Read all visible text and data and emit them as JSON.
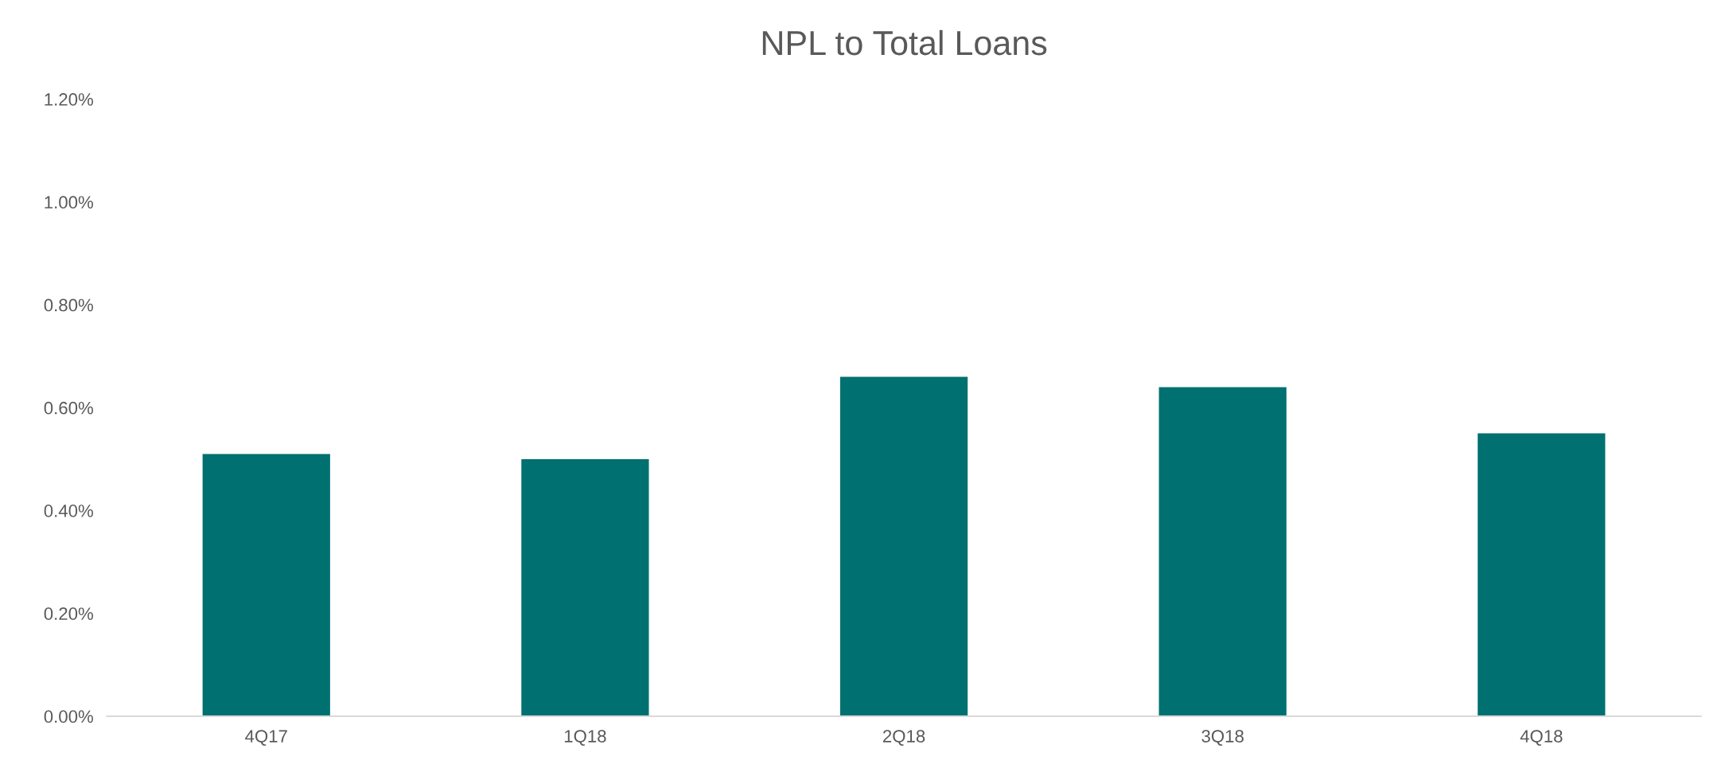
{
  "chart_data": {
    "type": "bar",
    "title": "NPL to Total Loans",
    "categories": [
      "4Q17",
      "1Q18",
      "2Q18",
      "3Q18",
      "4Q18"
    ],
    "values": [
      0.51,
      0.5,
      0.66,
      0.64,
      0.55
    ],
    "color": "#007070",
    "ylim": [
      0,
      1.2
    ],
    "yticks": [
      {
        "value": 0,
        "label": "0.00%"
      },
      {
        "value": 0.2,
        "label": "0.20%"
      },
      {
        "value": 0.4,
        "label": "0.40%"
      },
      {
        "value": 0.6,
        "label": "0.60%"
      },
      {
        "value": 0.8,
        "label": "0.80%"
      },
      {
        "value": 1.0,
        "label": "1.00%"
      },
      {
        "value": 1.2,
        "label": "1.20%"
      }
    ],
    "grid": false,
    "legend": false
  }
}
